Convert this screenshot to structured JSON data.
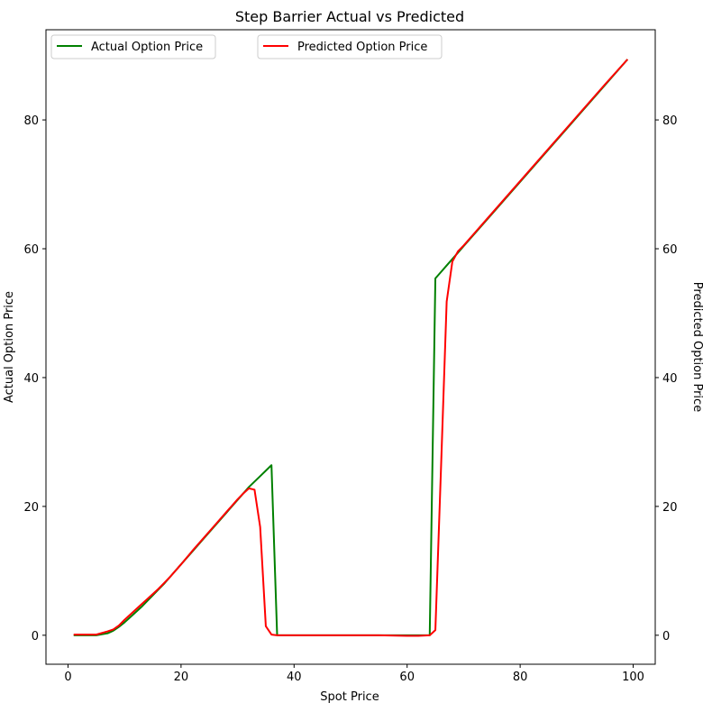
{
  "chart_data": {
    "type": "line",
    "title": "Step Barrier Actual vs Predicted",
    "xlabel": "Spot Price",
    "ylabel_left": "Actual Option Price",
    "ylabel_right": "Predicted Option Price",
    "xlim": [
      -3.9,
      103.9
    ],
    "ylim": [
      -4.5,
      94.0
    ],
    "x_ticks": [
      0,
      20,
      40,
      60,
      80,
      100
    ],
    "y_ticks": [
      0,
      20,
      40,
      60,
      80
    ],
    "grid": false,
    "legend": [
      "top-left",
      "top-center"
    ],
    "series": [
      {
        "name": "Actual Option Price",
        "axis": "left",
        "color": "#008000",
        "x": [
          1,
          3,
          5,
          7,
          8,
          9,
          10,
          11,
          12,
          13,
          14,
          15,
          16,
          17,
          18,
          20,
          22,
          24,
          26,
          28,
          30,
          32,
          34,
          36,
          37,
          40,
          45,
          50,
          55,
          60,
          62,
          64,
          65,
          66,
          67,
          68,
          69,
          70,
          72,
          75,
          80,
          85,
          90,
          95,
          99
        ],
        "values": [
          0,
          0,
          0,
          0.3,
          0.7,
          1.3,
          2.0,
          2.8,
          3.6,
          4.4,
          5.3,
          6.2,
          7.1,
          8.0,
          9.0,
          11.0,
          13.0,
          15.0,
          17.0,
          19.0,
          21.0,
          23.0,
          24.7,
          26.4,
          0,
          0,
          0,
          0,
          0,
          0,
          0,
          0,
          55.4,
          56.4,
          57.4,
          58.4,
          59.4,
          60.4,
          62.4,
          65.4,
          70.4,
          75.4,
          80.4,
          85.4,
          89.4
        ]
      },
      {
        "name": "Predicted Option Price",
        "axis": "right",
        "color": "#ff0000",
        "x": [
          1,
          3,
          5,
          7,
          8,
          9,
          10,
          11,
          12,
          13,
          14,
          15,
          16,
          17,
          18,
          20,
          22,
          24,
          26,
          28,
          30,
          31,
          32,
          33,
          34,
          35,
          36,
          37,
          40,
          45,
          50,
          55,
          60,
          62,
          64,
          65,
          66,
          67,
          68,
          69,
          70,
          72,
          75,
          80,
          85,
          90,
          95,
          99
        ],
        "values": [
          0.1,
          0.1,
          0.1,
          0.6,
          0.9,
          1.5,
          2.4,
          3.2,
          4.0,
          4.8,
          5.6,
          6.4,
          7.2,
          8.1,
          9.0,
          11.0,
          13.1,
          15.1,
          17.1,
          19.1,
          21.1,
          22.0,
          22.8,
          22.6,
          16.8,
          1.4,
          0.1,
          0.0,
          0.0,
          0.0,
          0.0,
          0.0,
          -0.1,
          -0.1,
          0.0,
          0.8,
          26.0,
          51.8,
          58.0,
          59.6,
          60.5,
          62.5,
          65.5,
          70.5,
          75.5,
          80.5,
          85.5,
          89.4
        ]
      }
    ]
  }
}
